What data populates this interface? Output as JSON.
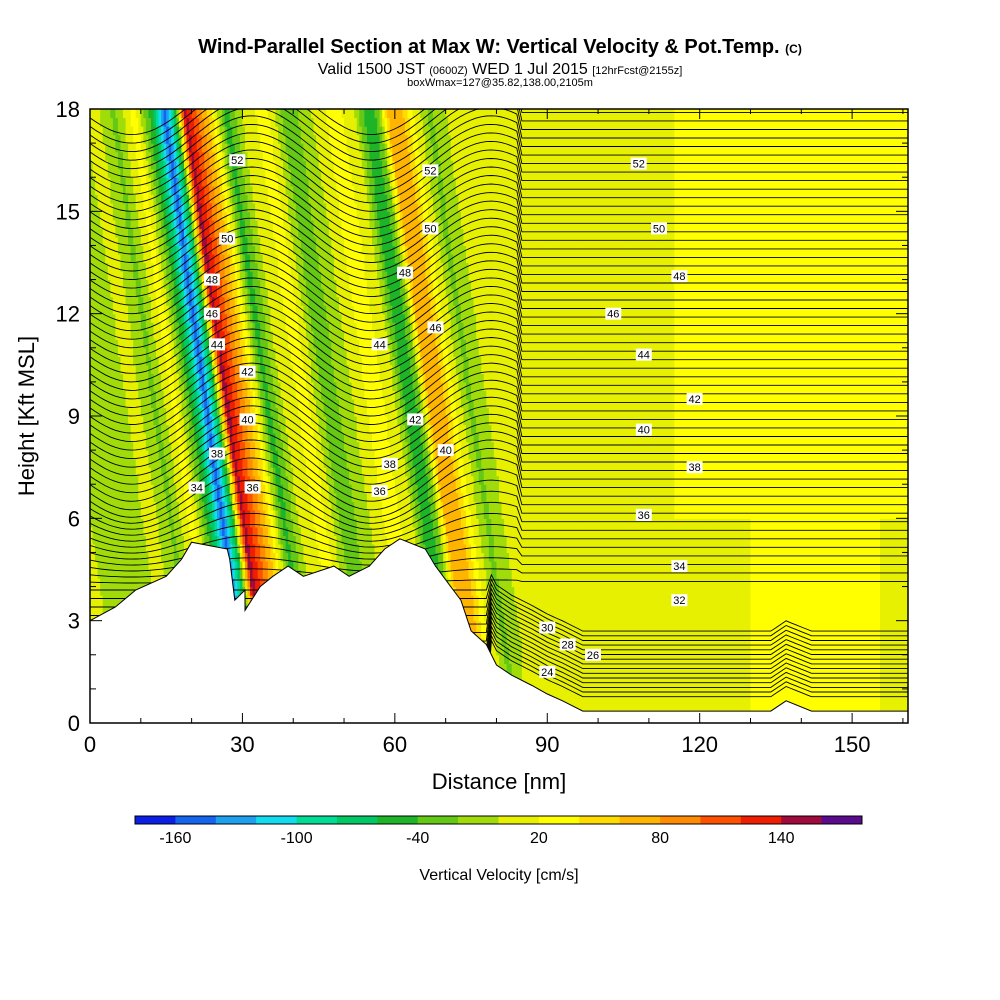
{
  "header": {
    "title_main": "Wind-Parallel Section at Max W: Vertical Velocity & Pot.Temp.",
    "title_c": "(C)",
    "valid_a": "Valid 1500 JST",
    "valid_b": "(0600Z)",
    "valid_c": "WED 1 Jul 2015",
    "valid_d": "[12hrFcst@2155z]",
    "box_line": "boxWmax=127@35.82,138.00,2105m"
  },
  "chart_data": {
    "type": "heatmap",
    "xlabel": "Distance [nm]",
    "ylabel": "Height [Kft MSL]",
    "xlim": [
      0,
      161
    ],
    "ylim": [
      0,
      18
    ],
    "x_ticks": [
      0,
      30,
      60,
      90,
      120,
      150
    ],
    "y_ticks": [
      0,
      3,
      6,
      9,
      12,
      15,
      18
    ],
    "colorbar": {
      "label": "Vertical Velocity [cm/s]",
      "tick_labels": [
        -160,
        -100,
        -40,
        20,
        80,
        140
      ],
      "levels": [
        -180,
        -160,
        -140,
        -120,
        -100,
        -80,
        -60,
        -40,
        -20,
        0,
        20,
        40,
        60,
        80,
        100,
        120,
        140,
        160,
        180
      ],
      "colors": [
        "#0a1ee6",
        "#1464f0",
        "#1ea0f0",
        "#14dcf0",
        "#00dc96",
        "#00c864",
        "#1eb428",
        "#64c814",
        "#a0dc0a",
        "#e6f000",
        "#ffff00",
        "#ffdc00",
        "#ffb400",
        "#ff8c00",
        "#ff5000",
        "#f01e00",
        "#a00a3c",
        "#5a0a8c"
      ]
    },
    "vertical_velocity_bands": [
      {
        "x": 0,
        "value": 0
      },
      {
        "x": 7,
        "value": -20
      },
      {
        "x": 12,
        "value": 10
      },
      {
        "x": 16,
        "value": -25
      },
      {
        "x": 20,
        "value": 30
      },
      {
        "x": 24,
        "value": -70
      },
      {
        "x": 26,
        "value": -150
      },
      {
        "x": 28,
        "value": -60
      },
      {
        "x": 30,
        "value": 150
      },
      {
        "x": 32,
        "value": 110
      },
      {
        "x": 35,
        "value": 50
      },
      {
        "x": 38,
        "value": -50
      },
      {
        "x": 42,
        "value": 15
      },
      {
        "x": 46,
        "value": 25
      },
      {
        "x": 50,
        "value": -35
      },
      {
        "x": 55,
        "value": 0
      },
      {
        "x": 59,
        "value": 30
      },
      {
        "x": 63,
        "value": 10
      },
      {
        "x": 66,
        "value": -60
      },
      {
        "x": 68,
        "value": -30
      },
      {
        "x": 70,
        "value": 70
      },
      {
        "x": 72,
        "value": 80
      },
      {
        "x": 75,
        "value": 20
      },
      {
        "x": 78,
        "value": -25
      },
      {
        "x": 82,
        "value": 5
      },
      {
        "x": 90,
        "value": 0
      },
      {
        "x": 105,
        "value": 5
      },
      {
        "x": 115,
        "value": 12
      },
      {
        "x": 130,
        "value": 20
      },
      {
        "x": 150,
        "value": 25
      },
      {
        "x": 161,
        "value": 15
      }
    ],
    "terrain_kft": [
      {
        "x": 0,
        "h": 3.0
      },
      {
        "x": 5,
        "h": 3.4
      },
      {
        "x": 9,
        "h": 3.9
      },
      {
        "x": 15,
        "h": 4.3
      },
      {
        "x": 18,
        "h": 4.8
      },
      {
        "x": 20,
        "h": 5.3
      },
      {
        "x": 27,
        "h": 5.1
      },
      {
        "x": 27.5,
        "h": 4.8
      },
      {
        "x": 28.5,
        "h": 3.6
      },
      {
        "x": 30.5,
        "h": 3.9
      },
      {
        "x": 30.5,
        "h": 3.3
      },
      {
        "x": 33.5,
        "h": 4.0
      },
      {
        "x": 36,
        "h": 4.3
      },
      {
        "x": 39,
        "h": 4.6
      },
      {
        "x": 42,
        "h": 4.3
      },
      {
        "x": 48,
        "h": 4.6
      },
      {
        "x": 51,
        "h": 4.3
      },
      {
        "x": 55,
        "h": 4.6
      },
      {
        "x": 58,
        "h": 5.1
      },
      {
        "x": 61,
        "h": 5.4
      },
      {
        "x": 66,
        "h": 5.1
      },
      {
        "x": 68,
        "h": 4.6
      },
      {
        "x": 71,
        "h": 4.0
      },
      {
        "x": 73,
        "h": 3.6
      },
      {
        "x": 75,
        "h": 2.7
      },
      {
        "x": 78,
        "h": 2.3
      },
      {
        "x": 80,
        "h": 1.7
      },
      {
        "x": 83,
        "h": 1.4
      },
      {
        "x": 87,
        "h": 1.1
      },
      {
        "x": 90,
        "h": 0.85
      },
      {
        "x": 93,
        "h": 0.65
      },
      {
        "x": 97,
        "h": 0.35
      },
      {
        "x": 134,
        "h": 0.35
      },
      {
        "x": 137,
        "h": 0.65
      },
      {
        "x": 142,
        "h": 0.35
      },
      {
        "x": 161,
        "h": 0.35
      }
    ],
    "theta_contour_labels": [
      {
        "x": 29,
        "y": 16.5,
        "text": "52"
      },
      {
        "x": 27,
        "y": 14.2,
        "text": "50"
      },
      {
        "x": 24,
        "y": 13.0,
        "text": "48"
      },
      {
        "x": 24,
        "y": 12.0,
        "text": "46"
      },
      {
        "x": 25,
        "y": 11.1,
        "text": "44"
      },
      {
        "x": 31,
        "y": 10.3,
        "text": "42"
      },
      {
        "x": 31,
        "y": 8.9,
        "text": "40"
      },
      {
        "x": 25,
        "y": 7.9,
        "text": "38"
      },
      {
        "x": 21,
        "y": 6.9,
        "text": "34"
      },
      {
        "x": 32,
        "y": 6.9,
        "text": "36"
      },
      {
        "x": 67,
        "y": 16.2,
        "text": "52"
      },
      {
        "x": 67,
        "y": 14.5,
        "text": "50"
      },
      {
        "x": 62,
        "y": 13.2,
        "text": "48"
      },
      {
        "x": 68,
        "y": 11.6,
        "text": "46"
      },
      {
        "x": 57,
        "y": 11.1,
        "text": "44"
      },
      {
        "x": 64,
        "y": 8.9,
        "text": "42"
      },
      {
        "x": 70,
        "y": 8.0,
        "text": "40"
      },
      {
        "x": 59,
        "y": 7.6,
        "text": "38"
      },
      {
        "x": 57,
        "y": 6.8,
        "text": "36"
      },
      {
        "x": 108,
        "y": 16.4,
        "text": "52"
      },
      {
        "x": 112,
        "y": 14.5,
        "text": "50"
      },
      {
        "x": 116,
        "y": 13.1,
        "text": "48"
      },
      {
        "x": 103,
        "y": 12.0,
        "text": "46"
      },
      {
        "x": 109,
        "y": 10.8,
        "text": "44"
      },
      {
        "x": 119,
        "y": 9.5,
        "text": "42"
      },
      {
        "x": 109,
        "y": 8.6,
        "text": "40"
      },
      {
        "x": 119,
        "y": 7.5,
        "text": "38"
      },
      {
        "x": 109,
        "y": 6.1,
        "text": "36"
      },
      {
        "x": 116,
        "y": 4.6,
        "text": "34"
      },
      {
        "x": 116,
        "y": 3.6,
        "text": "32"
      },
      {
        "x": 90,
        "y": 2.8,
        "text": "30"
      },
      {
        "x": 94,
        "y": 2.3,
        "text": "28"
      },
      {
        "x": 99,
        "y": 2.0,
        "text": "26"
      },
      {
        "x": 90,
        "y": 1.5,
        "text": "24"
      }
    ]
  }
}
